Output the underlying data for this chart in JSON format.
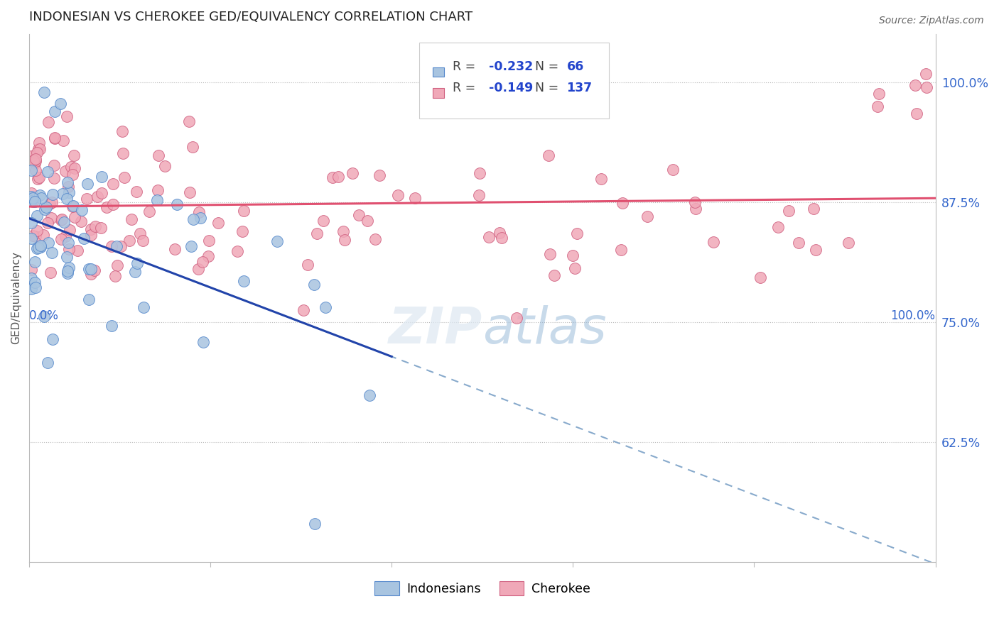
{
  "title": "INDONESIAN VS CHEROKEE GED/EQUIVALENCY CORRELATION CHART",
  "source": "Source: ZipAtlas.com",
  "ylabel": "GED/Equivalency",
  "r_indonesian": -0.232,
  "n_indonesian": 66,
  "r_cherokee": -0.149,
  "n_cherokee": 137,
  "color_indonesian_fill": "#a8c4e0",
  "color_indonesian_edge": "#5588cc",
  "color_cherokee_fill": "#f0a8b8",
  "color_cherokee_edge": "#d06080",
  "color_indonesian_line": "#2244aa",
  "color_cherokee_line": "#e05070",
  "color_dashed_line": "#88aacc",
  "ytick_labels": [
    "62.5%",
    "75.0%",
    "87.5%",
    "100.0%"
  ],
  "ytick_values": [
    0.625,
    0.75,
    0.875,
    1.0
  ],
  "xlim": [
    0.0,
    1.0
  ],
  "ylim": [
    0.5,
    1.05
  ],
  "background_color": "#ffffff",
  "legend_r1": "R = -0.232",
  "legend_n1": "N =  66",
  "legend_r2": "R = -0.149",
  "legend_n2": "N = 137",
  "watermark": "ZIPatlas"
}
